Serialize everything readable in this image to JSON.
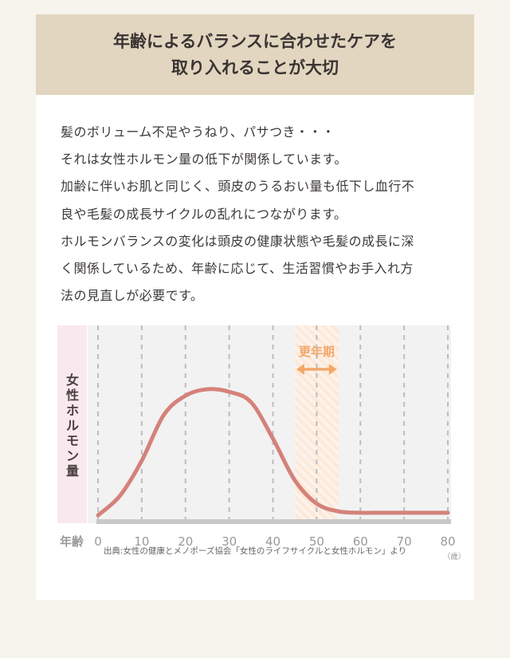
{
  "banner": {
    "title_line1": "年齢によるバランスに合わせたケアを",
    "title_line2": "取り入れることが大切"
  },
  "body": {
    "lines": [
      "髪のボリューム不足やうねり、パサつき・・・",
      "それは女性ホルモン量の低下が関係しています。",
      "加齢に伴いお肌と同じく、頭皮のうるおい量も低下し血行不",
      "良や毛髪の成長サイクルの乱れにつながります。",
      "ホルモンバランスの変化は頭皮の健康状態や毛髪の成長に深",
      "く関係しているため、年齢に応じて、生活習慣やお手入れ方",
      "法の見直しが必要です。"
    ]
  },
  "chart_data": {
    "type": "line",
    "ylabel": "女性ホルモン量",
    "xlabel": "年齢",
    "x_unit": "（歳）",
    "xlim": [
      0,
      80
    ],
    "x_ticks": [
      0,
      10,
      20,
      30,
      40,
      50,
      60,
      70,
      80
    ],
    "series": [
      {
        "x": [
          0,
          5,
          10,
          15,
          20,
          25,
          30,
          35,
          40,
          45,
          50,
          55,
          60,
          65,
          70,
          75,
          80
        ],
        "values": [
          0.03,
          0.18,
          0.45,
          0.8,
          0.95,
          1.0,
          0.98,
          0.9,
          0.62,
          0.3,
          0.12,
          0.06,
          0.05,
          0.05,
          0.05,
          0.05,
          0.05
        ]
      }
    ],
    "highlight": {
      "label": "更年期",
      "from": 45,
      "to": 55
    },
    "grid": "vertical-dashed",
    "colors": {
      "line": "#d4827a",
      "highlight": "#f2a86a",
      "plot_bg": "#f2f2f2",
      "ylabel_bg": "#f9e9ee",
      "axis": "#c8c8c8"
    }
  },
  "source": "出典:女性の健康とメノポーズ協会「女性のライフサイクルと女性ホルモン」より"
}
